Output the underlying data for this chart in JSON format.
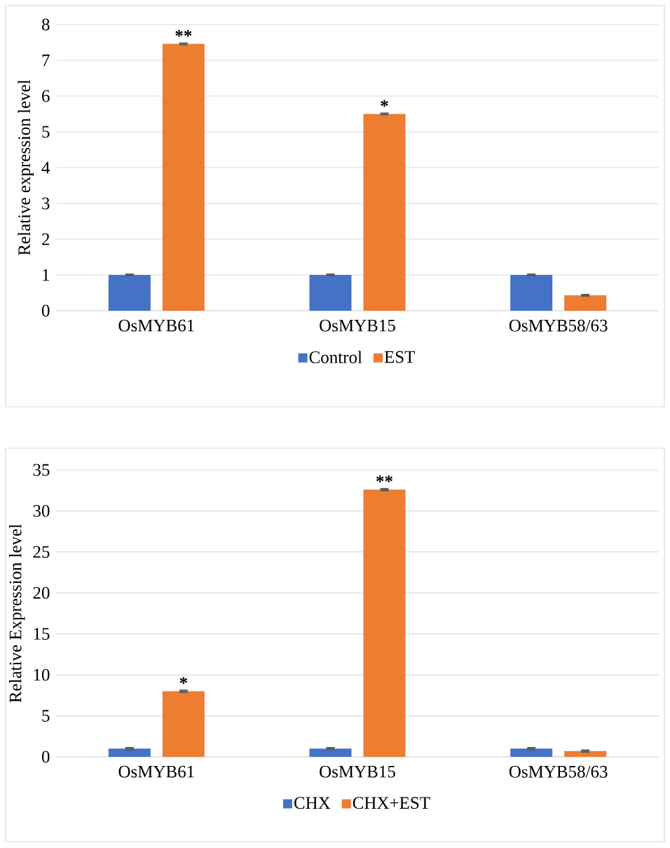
{
  "chart_data": [
    {
      "type": "bar",
      "ylabel": "Relative expression level",
      "categories": [
        "OsMYB61",
        "OsMYB15",
        "OsMYB58/63"
      ],
      "series": [
        {
          "name": "Control",
          "color": "#4472c4",
          "values": [
            1,
            1,
            1
          ],
          "errors": [
            0.04,
            0.04,
            0.04
          ]
        },
        {
          "name": "EST",
          "color": "#ed7d31",
          "values": [
            7.46,
            5.5,
            0.43
          ],
          "errors": [
            0.04,
            0.04,
            0.04
          ]
        }
      ],
      "ylim": [
        0,
        8
      ],
      "yticks": [
        0,
        1,
        2,
        3,
        4,
        5,
        6,
        7,
        8
      ],
      "grid": "y",
      "legend": "bottom",
      "annotations": [
        "**",
        "*"
      ]
    },
    {
      "type": "bar",
      "ylabel": "Relative Expression level",
      "categories": [
        "OsMYB61",
        "OsMYB15",
        "OsMYB58/63"
      ],
      "series": [
        {
          "name": "CHX",
          "color": "#4472c4",
          "values": [
            1,
            1,
            1
          ],
          "errors": [
            0.2,
            0.2,
            0.2
          ]
        },
        {
          "name": "CHX+EST",
          "color": "#ed7d31",
          "values": [
            8,
            32.6,
            0.7
          ],
          "errors": [
            0.2,
            0.2,
            0.2
          ]
        }
      ],
      "ylim": [
        0,
        35
      ],
      "yticks": [
        0,
        5,
        10,
        15,
        20,
        25,
        30,
        35
      ],
      "grid": "y",
      "legend": "bottom",
      "annotations": [
        "*",
        "**"
      ]
    }
  ]
}
